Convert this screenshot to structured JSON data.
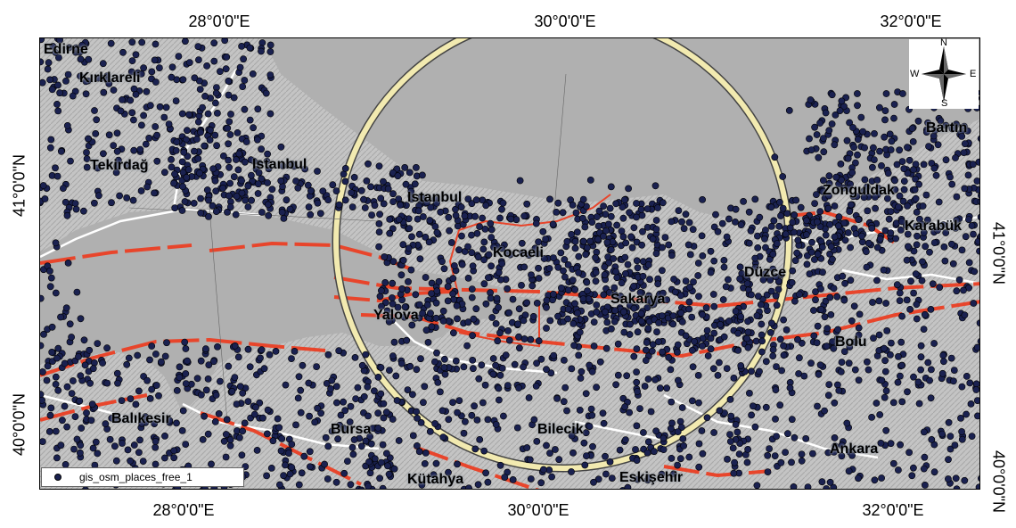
{
  "coordinates": {
    "top": [
      "28°0'0\"E",
      "30°0'0\"E",
      "32°0'0\"E"
    ],
    "bottom": [
      "28°0'0\"E",
      "30°0'0\"E",
      "32°0'0\"E"
    ],
    "left": [
      "41°0'0\"N",
      "40°0'0\"N"
    ],
    "right": [
      "41°0'0\"N",
      "40°0'0\"N"
    ]
  },
  "places": [
    {
      "name": "Edirne"
    },
    {
      "name": "Kırklareli"
    },
    {
      "name": "Tekirdağ"
    },
    {
      "name": "Istanbul"
    },
    {
      "name": "Istanbul"
    },
    {
      "name": "Kocaeli"
    },
    {
      "name": "Zonguldak"
    },
    {
      "name": "Karabük"
    },
    {
      "name": "Düzce"
    },
    {
      "name": "Sakarya"
    },
    {
      "name": "Yalova"
    },
    {
      "name": "Bolu"
    },
    {
      "name": "Balıkesir"
    },
    {
      "name": "Bursa"
    },
    {
      "name": "Bilecik"
    },
    {
      "name": "Ankara"
    },
    {
      "name": "Kütahya"
    },
    {
      "name": "Eskişehir"
    },
    {
      "name": "Bartın"
    }
  ],
  "legend": {
    "label": "gis_osm_places_free_1",
    "symbol_color": "#1a2150"
  },
  "north_arrow": {
    "n": "N",
    "s": "S",
    "e": "E",
    "w": "W"
  },
  "colors": {
    "land": "#bdbdbd",
    "water": "#b0b0b0",
    "places": "#1a2150",
    "faults": "#e8452b",
    "boundaries": "#ffffff",
    "circle": "#f2eab0"
  }
}
